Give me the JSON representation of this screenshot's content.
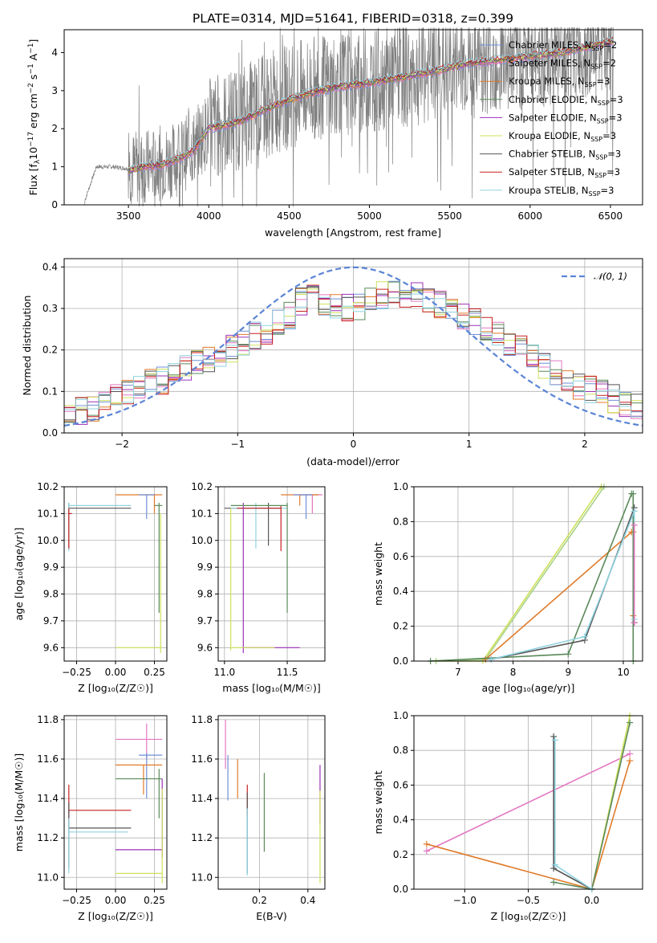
{
  "chart_data": [
    {
      "type": "line",
      "title": "PLATE=0314, MJD=51641, FIBERID=0318, z=0.399",
      "xlabel": "wavelength [Angstrom, rest frame]",
      "ylabel": "Flux [f",
      "ylabel_sub": "λ",
      "ylabel_tail": "10",
      "ylabel_exp1": "−17",
      "ylabel_tail2": " erg cm",
      "ylabel_exp2": "−2",
      "ylabel_tail3": " s",
      "ylabel_exp3": "−1",
      "ylabel_tail4": " A",
      "ylabel_exp4": "−1",
      "ylabel_end": "]",
      "xlim": [
        3100,
        6700
      ],
      "ylim": [
        0,
        4.6
      ],
      "xticks": [
        "3500",
        "4000",
        "4500",
        "5000",
        "5500",
        "6000",
        "6500"
      ],
      "yticks": [
        "0",
        "1",
        "2",
        "3",
        "4"
      ],
      "grid": false,
      "legend": "upper right",
      "legend_entries": [
        {
          "name": "Chabrier MILES, N",
          "sub": "SSP",
          "tail": "=2",
          "color": "#6f8fd8"
        },
        {
          "name": "Salpeter MILES, N",
          "sub": "SSP",
          "tail": "=2",
          "color": "#e377c2"
        },
        {
          "name": "Kroupa MILES, N",
          "sub": "SSP",
          "tail": "=3",
          "color": "#e07b2a"
        },
        {
          "name": "Chabrier ELODIE, N",
          "sub": "SSP",
          "tail": "=3",
          "color": "#5a8a5a"
        },
        {
          "name": "Salpeter ELODIE, N",
          "sub": "SSP",
          "tail": "=3",
          "color": "#9b30b8"
        },
        {
          "name": "Kroupa ELODIE, N",
          "sub": "SSP",
          "tail": "=3",
          "color": "#cfe05a"
        },
        {
          "name": "Chabrier STELIB, N",
          "sub": "SSP",
          "tail": "=3",
          "color": "#555555"
        },
        {
          "name": "Salpeter STELIB, N",
          "sub": "SSP",
          "tail": "=3",
          "color": "#c82020"
        },
        {
          "name": "Kroupa STELIB, N",
          "sub": "SSP",
          "tail": "=3",
          "color": "#8fd3e0"
        }
      ],
      "data_color": "#808080",
      "data_approx": {
        "x": [
          3220,
          3300,
          3400,
          3500,
          3600,
          3700,
          3800,
          3900,
          4000,
          4200,
          4400,
          4600,
          4800,
          5000,
          5200,
          5400,
          5600,
          5800,
          6000,
          6200,
          6400,
          6520
        ],
        "y": [
          0.0,
          1.0,
          1.0,
          0.95,
          1.0,
          1.1,
          1.2,
          1.5,
          2.0,
          2.3,
          2.7,
          3.0,
          3.2,
          3.3,
          3.4,
          3.5,
          3.7,
          3.8,
          3.9,
          4.0,
          4.2,
          4.3
        ]
      },
      "model_approx": {
        "x": [
          3500,
          3600,
          3700,
          3800,
          3900,
          4000,
          4200,
          4400,
          4600,
          4800,
          5000,
          5200,
          5400,
          5600,
          5800,
          6000,
          6200,
          6400,
          6520
        ],
        "y": [
          0.9,
          1.0,
          1.05,
          1.2,
          1.4,
          2.0,
          2.2,
          2.6,
          2.9,
          3.1,
          3.2,
          3.35,
          3.5,
          3.7,
          3.8,
          3.9,
          4.0,
          4.2,
          4.3
        ]
      }
    },
    {
      "type": "step",
      "xlabel": "(data-model)/error",
      "ylabel": "Normed distribution",
      "xlim": [
        -2.5,
        2.5
      ],
      "ylim": [
        0,
        0.42
      ],
      "xticks": [
        "−2",
        "−1",
        "0",
        "1",
        "2"
      ],
      "yticks": [
        "0.0",
        "0.1",
        "0.2",
        "0.3",
        "0.4"
      ],
      "grid": true,
      "legend": "upper right",
      "legend_entry": "𝒩(0, 1)",
      "gauss_color": "#5b84d6",
      "hist_bin_centers": [
        -2.4,
        -2.2,
        -2.0,
        -1.8,
        -1.6,
        -1.4,
        -1.2,
        -1.0,
        -0.8,
        -0.6,
        -0.4,
        -0.2,
        0.0,
        0.2,
        0.4,
        0.6,
        0.8,
        1.0,
        1.2,
        1.4,
        1.6,
        1.8,
        2.0,
        2.2,
        2.4
      ],
      "hist_values": [
        0.05,
        0.06,
        0.09,
        0.12,
        0.13,
        0.16,
        0.18,
        0.21,
        0.24,
        0.27,
        0.33,
        0.31,
        0.3,
        0.33,
        0.34,
        0.33,
        0.3,
        0.27,
        0.25,
        0.21,
        0.17,
        0.13,
        0.11,
        0.09,
        0.06
      ]
    },
    {
      "type": "errorbar",
      "xlabel": "Z [log₁₀(Z/Z☉)]",
      "ylabel": "age  [log₁₀(age/yr)]",
      "xlim": [
        -0.33,
        0.33
      ],
      "ylim": [
        9.55,
        10.2
      ],
      "xticks": [
        "−0.25",
        "0.00",
        "0.25"
      ],
      "yticks": [
        "9.6",
        "9.7",
        "9.8",
        "9.9",
        "10.0",
        "10.1",
        "10.2"
      ],
      "grid": true
    },
    {
      "type": "errorbar",
      "xlabel": "mass [log₁₀(M/M☉)]",
      "ylabel": "",
      "xlim": [
        10.95,
        11.8
      ],
      "ylim": [
        9.55,
        10.2
      ],
      "xticks": [
        "11.0",
        "11.5"
      ],
      "yticks": [
        "9.6",
        "9.7",
        "9.8",
        "9.9",
        "10.0",
        "10.1",
        "10.2"
      ],
      "grid": true
    },
    {
      "type": "line",
      "xlabel": "age  [log₁₀(age/yr)]",
      "ylabel": "mass weight",
      "xlim": [
        6.2,
        10.35
      ],
      "ylim": [
        0,
        1.0
      ],
      "xticks": [
        "7",
        "8",
        "9",
        "10"
      ],
      "yticks": [
        "0.0",
        "0.2",
        "0.4",
        "0.6",
        "0.8",
        "1.0"
      ],
      "grid": true,
      "series": [
        {
          "color": "#cfe05a",
          "x": [
            6.6,
            7.45,
            9.6
          ],
          "y": [
            0.0,
            0.0,
            1.0
          ]
        },
        {
          "color": "#a8d28a",
          "x": [
            6.6,
            7.5,
            9.65
          ],
          "y": [
            0.0,
            0.01,
            1.0
          ]
        },
        {
          "color": "#e07b2a",
          "x": [
            7.5,
            10.15,
            10.18,
            10.18
          ],
          "y": [
            0.01,
            0.74,
            0.74,
            0.26
          ]
        },
        {
          "color": "#5a8a5a",
          "x": [
            6.5,
            9.0,
            10.15,
            10.18,
            10.18
          ],
          "y": [
            0.0,
            0.04,
            0.96,
            0.96,
            0.0
          ]
        },
        {
          "color": "#555555",
          "x": [
            7.6,
            9.3,
            10.2,
            10.2
          ],
          "y": [
            0.01,
            0.12,
            0.88,
            0.22
          ]
        },
        {
          "color": "#8fd3e0",
          "x": [
            7.6,
            9.3,
            10.2,
            10.2
          ],
          "y": [
            0.01,
            0.14,
            0.86,
            0.24
          ]
        },
        {
          "color": "#e377c2",
          "x": [
            10.2,
            10.2
          ],
          "y": [
            0.78,
            0.22
          ]
        }
      ]
    },
    {
      "type": "errorbar",
      "xlabel": "Z [log₁₀(Z/Z☉)]",
      "ylabel": "mass [log₁₀(M/M☉)]",
      "xlim": [
        -0.33,
        0.33
      ],
      "ylim": [
        10.94,
        11.82
      ],
      "xticks": [
        "−0.25",
        "0.00",
        "0.25"
      ],
      "yticks": [
        "11.0",
        "11.2",
        "11.4",
        "11.6",
        "11.8"
      ],
      "grid": true
    },
    {
      "type": "errorbar",
      "xlabel": "E(B-V)",
      "ylabel": "",
      "xlim": [
        0.03,
        0.47
      ],
      "ylim": [
        10.94,
        11.82
      ],
      "xticks": [
        "0.2",
        "0.4"
      ],
      "yticks": [
        "11.0",
        "11.2",
        "11.4",
        "11.6",
        "11.8"
      ],
      "grid": true
    },
    {
      "type": "line",
      "xlabel": "Z [log₁₀(Z/Z☉)]",
      "ylabel": "mass weight",
      "xlim": [
        -1.4,
        0.4
      ],
      "ylim": [
        0,
        1.0
      ],
      "xticks": [
        "−1.0",
        "−0.5",
        "0.0"
      ],
      "yticks": [
        "0.0",
        "0.2",
        "0.4",
        "0.6",
        "0.8",
        "1.0"
      ],
      "grid": true,
      "series": [
        {
          "color": "#e377c2",
          "x": [
            -1.3,
            0.3
          ],
          "y": [
            0.22,
            0.78
          ]
        },
        {
          "color": "#e07b2a",
          "x": [
            -1.3,
            0.0,
            0.3
          ],
          "y": [
            0.26,
            0.0,
            0.74
          ]
        },
        {
          "color": "#cfe05a",
          "x": [
            0.0,
            0.3
          ],
          "y": [
            0.0,
            1.0
          ]
        },
        {
          "color": "#5a8a5a",
          "x": [
            -0.3,
            0.0,
            0.3
          ],
          "y": [
            0.04,
            0.0,
            0.96
          ]
        },
        {
          "color": "#555555",
          "x": [
            -0.3,
            -0.3,
            0.0
          ],
          "y": [
            0.88,
            0.12,
            0.0
          ]
        },
        {
          "color": "#8fd3e0",
          "x": [
            -0.29,
            -0.29,
            0.0
          ],
          "y": [
            0.86,
            0.14,
            0.0
          ]
        }
      ]
    }
  ]
}
